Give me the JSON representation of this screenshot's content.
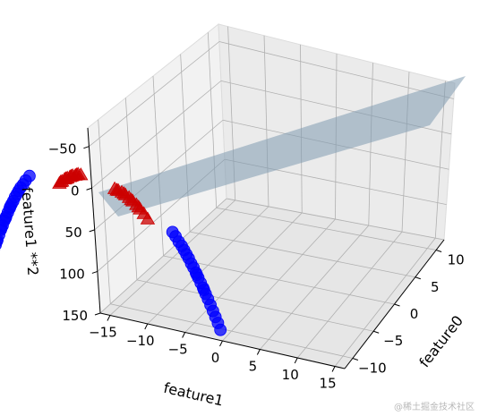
{
  "chart_data": {
    "type": "scatter",
    "projection": "3d",
    "title": "",
    "xlabel": "feature0",
    "ylabel": "feature1",
    "zlabel": "feature1 **2",
    "x_ticks": [
      "−10",
      "−5",
      "0",
      "5",
      "10"
    ],
    "y_ticks": [
      "−15",
      "−10",
      "−5",
      "0",
      "5",
      "10",
      "15"
    ],
    "z_ticks": [
      "−50",
      "0",
      "50",
      "100",
      "150"
    ],
    "z_inverted": true,
    "grid": true,
    "surface": {
      "type": "decision plane",
      "color": "#7f9bb0"
    },
    "series": [
      {
        "marker": "circle",
        "color": "#0000ff",
        "points": [
          [
            -6,
            -8,
            64
          ],
          [
            -6,
            -8.3,
            69
          ],
          [
            -6,
            -8.6,
            74
          ],
          [
            -6,
            -8.9,
            79
          ],
          [
            -6,
            -9.2,
            85
          ],
          [
            -6,
            -9.5,
            90
          ],
          [
            -6,
            -9.8,
            96
          ],
          [
            -6,
            -10.1,
            102
          ],
          [
            -6,
            -10.4,
            108
          ],
          [
            -6,
            -10.7,
            114
          ],
          [
            -6,
            -11,
            121
          ],
          [
            -6,
            -7.7,
            59
          ],
          [
            -6,
            -7.4,
            55
          ],
          [
            -6,
            -7.1,
            50
          ],
          [
            -6,
            -6.8,
            46
          ],
          [
            -6,
            -6.5,
            42
          ],
          [
            -6,
            -6.2,
            38
          ],
          [
            -6,
            -5.8,
            34
          ],
          [
            -6,
            -5.4,
            29
          ],
          [
            -6,
            -4.8,
            23
          ],
          [
            -6,
            -7.9,
            62
          ],
          [
            -6,
            -8.7,
            76
          ],
          [
            -6,
            -9.4,
            88
          ],
          [
            -6,
            -10.2,
            104
          ],
          [
            9,
            8,
            64
          ],
          [
            9,
            8.3,
            69
          ],
          [
            9,
            8.6,
            74
          ],
          [
            9,
            8.9,
            79
          ],
          [
            9,
            9.2,
            85
          ],
          [
            9,
            9.5,
            90
          ],
          [
            9,
            9.8,
            96
          ],
          [
            9,
            10.1,
            102
          ],
          [
            9,
            10.4,
            108
          ],
          [
            9,
            10.7,
            114
          ],
          [
            9,
            11,
            121
          ],
          [
            9,
            7.7,
            59
          ],
          [
            9,
            7.4,
            55
          ],
          [
            9,
            7.1,
            50
          ],
          [
            9,
            6.8,
            46
          ],
          [
            9,
            6.5,
            42
          ],
          [
            9,
            6.2,
            38
          ],
          [
            9,
            5.8,
            34
          ],
          [
            9,
            5.4,
            29
          ],
          [
            9,
            5.0,
            25
          ],
          [
            9,
            8.1,
            66
          ],
          [
            9,
            9.0,
            81
          ]
        ]
      },
      {
        "marker": "triangle",
        "color": "#cc0000",
        "points": [
          [
            -1,
            -4,
            16
          ],
          [
            -1,
            -3.6,
            13
          ],
          [
            -1,
            -3.2,
            10
          ],
          [
            -1,
            -2.8,
            8
          ],
          [
            -1,
            -2.4,
            6
          ],
          [
            -1,
            -2,
            4
          ],
          [
            -1,
            -1.6,
            3
          ],
          [
            -1,
            -1.2,
            1
          ],
          [
            -1,
            -0.8,
            1
          ],
          [
            -1,
            -3.8,
            14
          ],
          [
            -1,
            -3,
            9
          ],
          [
            -1,
            -2.2,
            5
          ],
          [
            -1,
            -1.4,
            2
          ],
          [
            4,
            0.5,
            0
          ],
          [
            4,
            1,
            1
          ],
          [
            4,
            1.5,
            2
          ],
          [
            4,
            2,
            4
          ],
          [
            4,
            2.5,
            6
          ],
          [
            4,
            3,
            9
          ],
          [
            4,
            3.5,
            12
          ],
          [
            4,
            4,
            16
          ],
          [
            4,
            4.5,
            20
          ],
          [
            4,
            5,
            25
          ],
          [
            4,
            0.8,
            1
          ],
          [
            4,
            1.8,
            3
          ],
          [
            4,
            2.8,
            8
          ],
          [
            4,
            3.8,
            14
          ]
        ]
      }
    ]
  },
  "watermark": "@稀土掘金技术社区"
}
